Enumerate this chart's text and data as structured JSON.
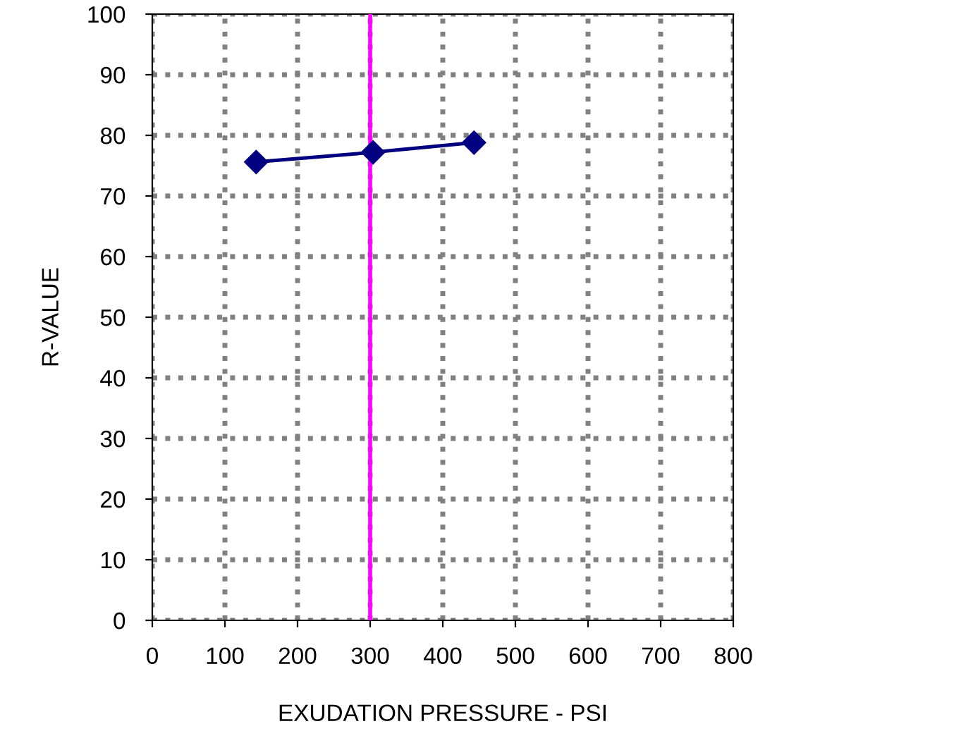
{
  "chart_data": {
    "type": "line",
    "xlabel": "EXUDATION PRESSURE - PSI",
    "ylabel": "R-VALUE",
    "series": [
      {
        "color": "#000080",
        "x": [
          143,
          304,
          443
        ],
        "values": [
          75.6,
          77.2,
          78.8
        ]
      }
    ],
    "xlim": [
      0,
      800
    ],
    "xticks": [
      0,
      100,
      200,
      300,
      400,
      500,
      600,
      700,
      800
    ],
    "ylim": [
      0,
      100
    ],
    "yticks": [
      0,
      10,
      20,
      30,
      40,
      50,
      60,
      70,
      80,
      90,
      100
    ],
    "grid": true,
    "marker": "diamond",
    "line_style": "solid",
    "ref_lines": [
      {
        "axis": "x",
        "value": 300,
        "color": "#ff00ff"
      }
    ]
  }
}
